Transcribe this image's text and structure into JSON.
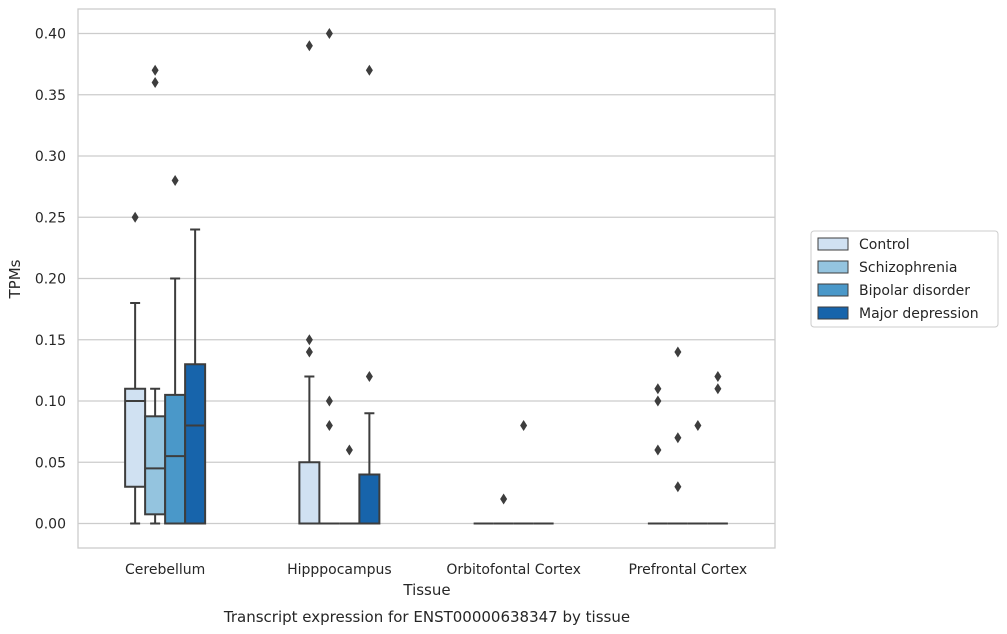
{
  "caption": "Transcript expression for ENST00000638347 by tissue",
  "chart_data": {
    "type": "box",
    "xlabel": "Tissue",
    "ylabel": "TPMs",
    "ylim": [
      -0.02,
      0.42
    ],
    "yticks": [
      "0.00",
      "0.05",
      "0.10",
      "0.15",
      "0.20",
      "0.25",
      "0.30",
      "0.35",
      "0.40"
    ],
    "categories": [
      "Cerebellum",
      "Hipppocampus",
      "Orbitofontal Cortex",
      "Prefrontal Cortex"
    ],
    "grid": "horizontal",
    "legend_position": "right",
    "series": [
      {
        "name": "Control",
        "color": "#d0e1f2",
        "boxes": [
          {
            "category": "Cerebellum",
            "q1": 0.03,
            "median": 0.1,
            "q3": 0.11,
            "whisker_low": 0.0,
            "whisker_high": 0.18,
            "outliers": [
              0.25
            ]
          },
          {
            "category": "Hipppocampus",
            "q1": 0.0,
            "median": 0.0,
            "q3": 0.05,
            "whisker_low": 0.0,
            "whisker_high": 0.12,
            "outliers": [
              0.14,
              0.15,
              0.39
            ]
          },
          {
            "category": "Orbitofontal Cortex",
            "q1": 0.0,
            "median": 0.0,
            "q3": 0.0,
            "whisker_low": 0.0,
            "whisker_high": 0.0,
            "outliers": []
          },
          {
            "category": "Prefrontal Cortex",
            "q1": 0.0,
            "median": 0.0,
            "q3": 0.0,
            "whisker_low": 0.0,
            "whisker_high": 0.0,
            "outliers": [
              0.06,
              0.1,
              0.11
            ]
          }
        ]
      },
      {
        "name": "Schizophrenia",
        "color": "#94c4df",
        "boxes": [
          {
            "category": "Cerebellum",
            "q1": 0.0075,
            "median": 0.045,
            "q3": 0.0875,
            "whisker_low": 0.0,
            "whisker_high": 0.11,
            "outliers": [
              0.36,
              0.37
            ]
          },
          {
            "category": "Hipppocampus",
            "q1": 0.0,
            "median": 0.0,
            "q3": 0.0,
            "whisker_low": 0.0,
            "whisker_high": 0.0,
            "outliers": [
              0.08,
              0.1,
              0.4
            ]
          },
          {
            "category": "Orbitofontal Cortex",
            "q1": 0.0,
            "median": 0.0,
            "q3": 0.0,
            "whisker_low": 0.0,
            "whisker_high": 0.0,
            "outliers": [
              0.02
            ]
          },
          {
            "category": "Prefrontal Cortex",
            "q1": 0.0,
            "median": 0.0,
            "q3": 0.0,
            "whisker_low": 0.0,
            "whisker_high": 0.0,
            "outliers": [
              0.03,
              0.07,
              0.14
            ]
          }
        ]
      },
      {
        "name": "Bipolar disorder",
        "color": "#4a98c9",
        "boxes": [
          {
            "category": "Cerebellum",
            "q1": 0.0,
            "median": 0.055,
            "q3": 0.105,
            "whisker_low": 0.0,
            "whisker_high": 0.2,
            "outliers": [
              0.28
            ]
          },
          {
            "category": "Hipppocampus",
            "q1": 0.0,
            "median": 0.0,
            "q3": 0.0,
            "whisker_low": 0.0,
            "whisker_high": 0.0,
            "outliers": [
              0.06
            ]
          },
          {
            "category": "Orbitofontal Cortex",
            "q1": 0.0,
            "median": 0.0,
            "q3": 0.0,
            "whisker_low": 0.0,
            "whisker_high": 0.0,
            "outliers": [
              0.08
            ]
          },
          {
            "category": "Prefrontal Cortex",
            "q1": 0.0,
            "median": 0.0,
            "q3": 0.0,
            "whisker_low": 0.0,
            "whisker_high": 0.0,
            "outliers": [
              0.08
            ]
          }
        ]
      },
      {
        "name": "Major depression",
        "color": "#1764ab",
        "boxes": [
          {
            "category": "Cerebellum",
            "q1": 0.0,
            "median": 0.08,
            "q3": 0.13,
            "whisker_low": 0.0,
            "whisker_high": 0.24,
            "outliers": []
          },
          {
            "category": "Hipppocampus",
            "q1": 0.0,
            "median": 0.0,
            "q3": 0.04,
            "whisker_low": 0.0,
            "whisker_high": 0.09,
            "outliers": [
              0.12,
              0.37
            ]
          },
          {
            "category": "Orbitofontal Cortex",
            "q1": 0.0,
            "median": 0.0,
            "q3": 0.0,
            "whisker_low": 0.0,
            "whisker_high": 0.0,
            "outliers": []
          },
          {
            "category": "Prefrontal Cortex",
            "q1": 0.0,
            "median": 0.0,
            "q3": 0.0,
            "whisker_low": 0.0,
            "whisker_high": 0.0,
            "outliers": [
              0.11,
              0.12
            ]
          }
        ]
      }
    ]
  }
}
